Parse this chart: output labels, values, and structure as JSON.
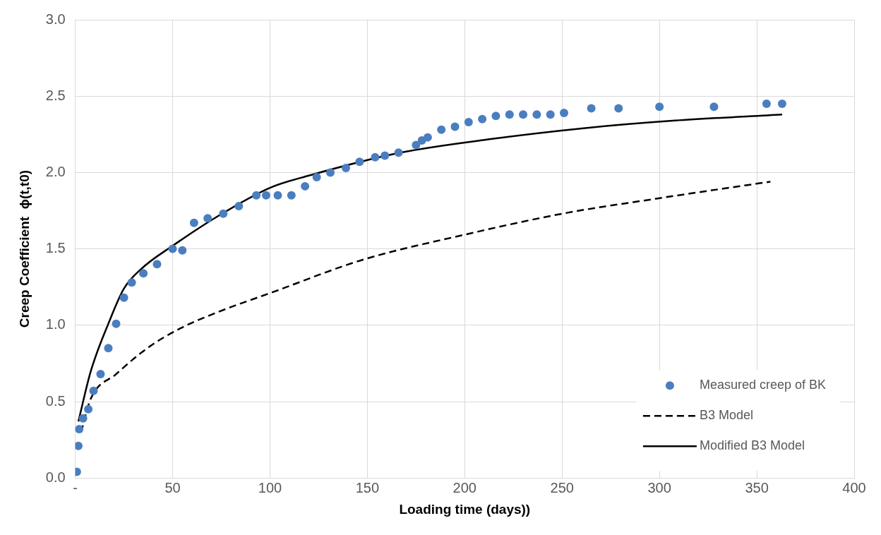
{
  "chart_data": {
    "type": "scatter",
    "xlabel": "Loading time (days))",
    "ylabel": "Creep Coefficient  ϕ(t,t0)",
    "xlim": [
      0,
      400
    ],
    "ylim": [
      0,
      3
    ],
    "xticks": [
      {
        "value": 0,
        "label": "-"
      },
      50,
      100,
      150,
      200,
      250,
      300,
      350,
      400
    ],
    "yticks": [
      {
        "value": 0,
        "label": "0.0"
      },
      {
        "value": 0.5,
        "label": "0.5"
      },
      {
        "value": 1,
        "label": "1.0"
      },
      {
        "value": 1.5,
        "label": "1.5"
      },
      {
        "value": 2,
        "label": "2.0"
      },
      {
        "value": 2.5,
        "label": "2.5"
      },
      {
        "value": 3,
        "label": "3.0"
      }
    ],
    "grid": true,
    "legend": "bottom right",
    "series": [
      {
        "name": "Measured creep of BK",
        "marker": "circle",
        "color": "#4a7ebf",
        "x": [
          0.8,
          1.6,
          2,
          4,
          6.7,
          9.4,
          13,
          17,
          21,
          25,
          29,
          35,
          42,
          50,
          55,
          61,
          68,
          76,
          84,
          93,
          98,
          104,
          111,
          118,
          124,
          131,
          139,
          146,
          154,
          159,
          166,
          175,
          178,
          181,
          188,
          195,
          202,
          209,
          216,
          223,
          230,
          237,
          244,
          251,
          265,
          279,
          300,
          328,
          355,
          363
        ],
        "values": [
          0.04,
          0.21,
          0.32,
          0.39,
          0.45,
          0.57,
          0.68,
          0.85,
          1.01,
          1.18,
          1.28,
          1.34,
          1.4,
          1.5,
          1.49,
          1.67,
          1.7,
          1.73,
          1.78,
          1.85,
          1.85,
          1.85,
          1.85,
          1.91,
          1.97,
          2.0,
          2.03,
          2.07,
          2.1,
          2.11,
          2.13,
          2.18,
          2.21,
          2.23,
          2.28,
          2.3,
          2.33,
          2.35,
          2.37,
          2.38,
          2.38,
          2.38,
          2.38,
          2.39,
          2.42,
          2.42,
          2.43,
          2.43,
          2.45,
          2.45
        ]
      },
      {
        "name": "B3 Model",
        "type": "line",
        "line_style": "dashed",
        "marker": "none",
        "color": "#000000",
        "x": [
          3,
          8,
          21,
          37,
          54,
          74,
          100,
          148,
          199,
          250,
          299,
          357
        ],
        "values": [
          0.3,
          0.52,
          0.68,
          0.85,
          0.98,
          1.09,
          1.21,
          1.43,
          1.59,
          1.73,
          1.83,
          1.94
        ]
      },
      {
        "name": "Modified B3 Model",
        "type": "line",
        "line_style": "solid",
        "marker": "none",
        "color": "#000000",
        "x": [
          1.6,
          8,
          17,
          25,
          34,
          50,
          74,
          100,
          120,
          167,
          214,
          261,
          308,
          363
        ],
        "values": [
          0.37,
          0.7,
          1.01,
          1.24,
          1.37,
          1.52,
          1.72,
          1.9,
          1.98,
          2.13,
          2.22,
          2.29,
          2.34,
          2.38
        ]
      }
    ]
  }
}
